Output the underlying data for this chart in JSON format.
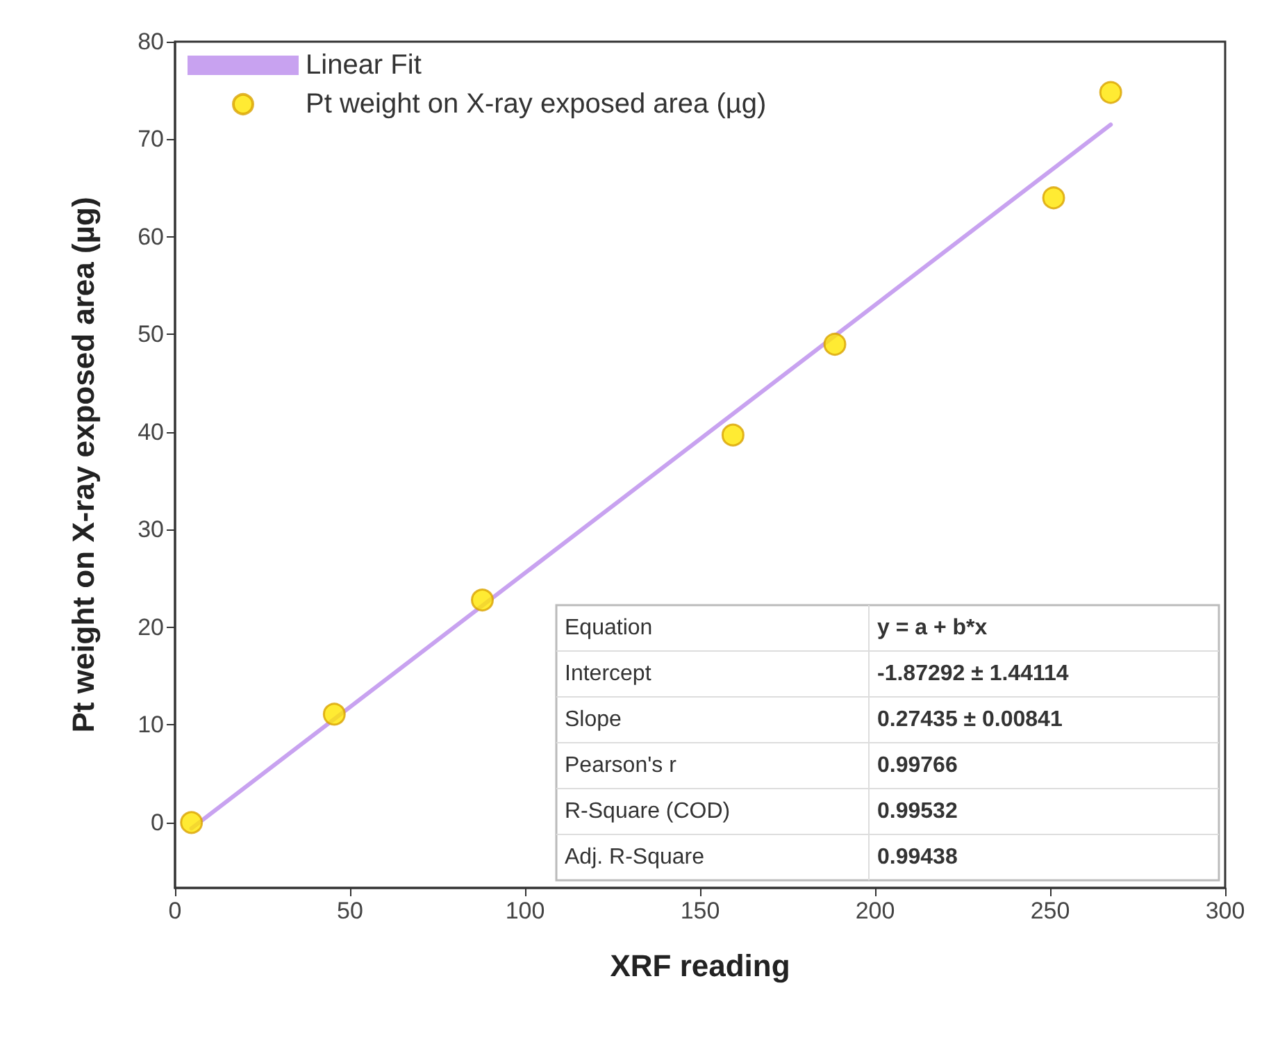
{
  "chart_data": {
    "type": "scatter",
    "xlabel": "XRF reading",
    "ylabel": "Pt weight on X-ray exposed area (µg)",
    "xlim": [
      0,
      300
    ],
    "xticks": [
      0,
      50,
      100,
      150,
      200,
      250,
      300
    ],
    "ylim": [
      -6.7,
      80
    ],
    "yticks": [
      0,
      10,
      20,
      30,
      40,
      50,
      60,
      70,
      80
    ],
    "grid": false,
    "legend": "top left",
    "marker": "circle",
    "series": [
      {
        "name": "Linear Fit",
        "type": "line",
        "color": "#c8a2f0",
        "x": [
          4.7,
          267.3
        ],
        "values": [
          -0.6,
          71.5
        ],
        "line_style": "solid",
        "marker": "none"
      },
      {
        "name": "Pt weight on X-ray exposed area (µg)",
        "color": "#ffe600",
        "x": [
          4.7,
          45.5,
          87.8,
          159.4,
          188.5,
          251,
          267.3
        ],
        "values": [
          0,
          11.1,
          22.8,
          39.7,
          49.0,
          64.0,
          74.8
        ]
      }
    ],
    "annotations": [
      "Equation",
      "y = a + b*x",
      "Intercept",
      "-1.87292 ± 1.44114",
      "Slope",
      "0.27435 ± 0.00841",
      "Pearson's r",
      "0.99766",
      "R-Square (COD)",
      "0.99532",
      "Adj. R-Square",
      "0.99438"
    ]
  }
}
